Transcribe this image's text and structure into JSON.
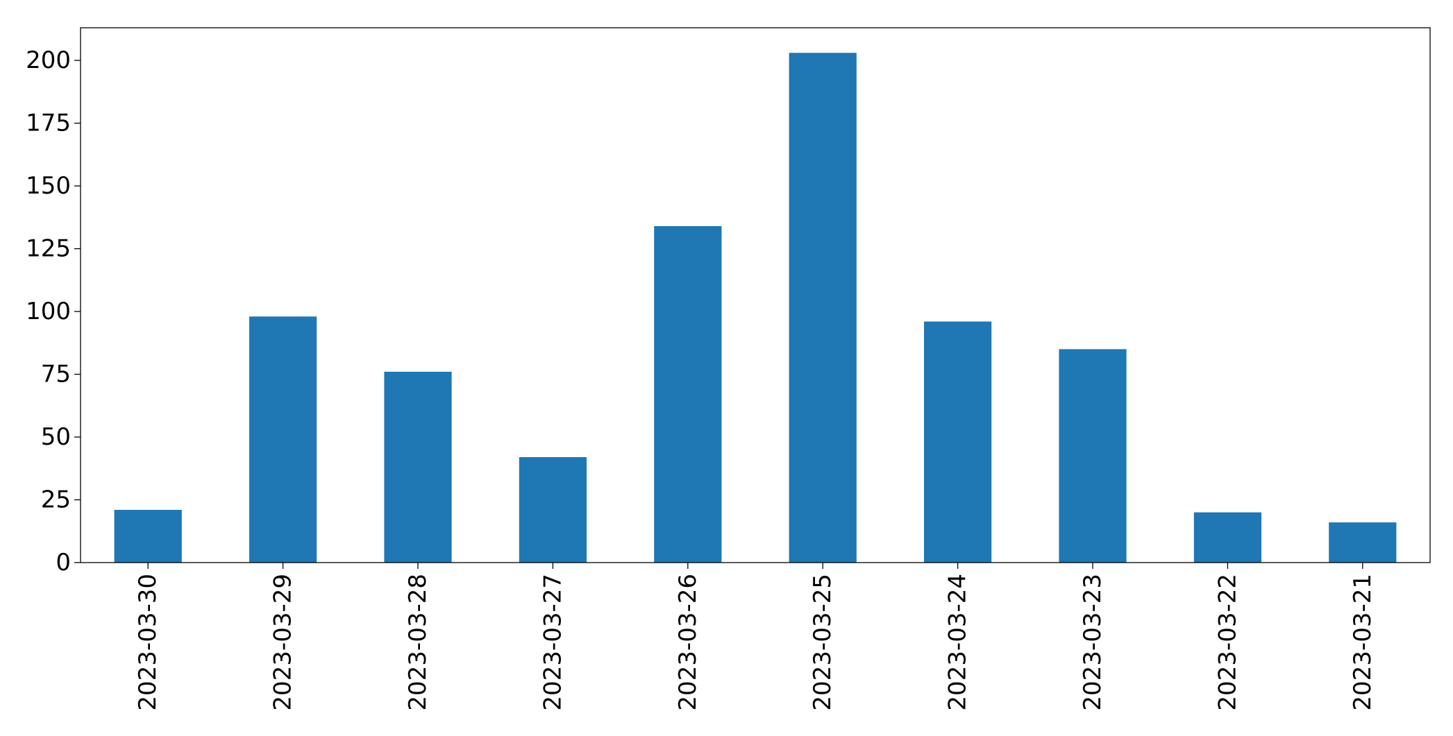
{
  "chart_data": {
    "type": "bar",
    "title": "",
    "xlabel": "",
    "ylabel": "",
    "categories": [
      "2023-03-30",
      "2023-03-29",
      "2023-03-28",
      "2023-03-27",
      "2023-03-26",
      "2023-03-25",
      "2023-03-24",
      "2023-03-23",
      "2023-03-22",
      "2023-03-21"
    ],
    "values": [
      21,
      98,
      76,
      42,
      134,
      203,
      96,
      85,
      20,
      16
    ],
    "ylim": [
      0,
      213
    ],
    "yticks": [
      0,
      25,
      50,
      75,
      100,
      125,
      150,
      175,
      200
    ],
    "grid": false,
    "legend": "none",
    "bar_color": "#1f77b4",
    "x_tick_rotation": "vertical"
  }
}
